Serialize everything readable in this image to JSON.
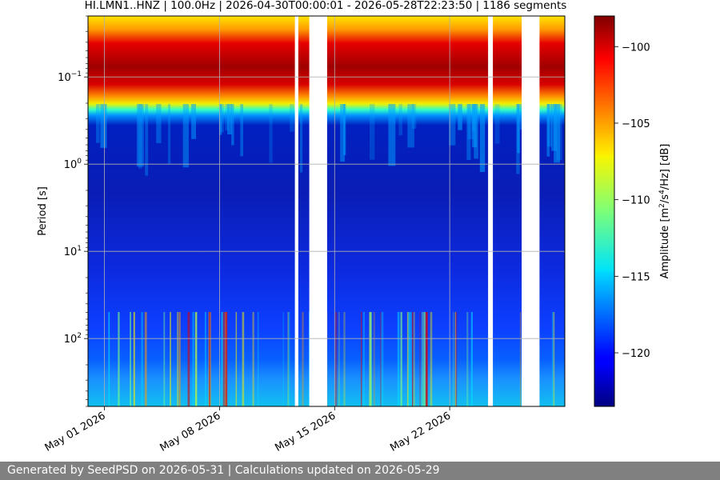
{
  "footer": {
    "text": "Generated by SeedPSD on 2026-05-31 | Calculations updated on 2026-05-29"
  },
  "chart_data": {
    "type": "heatmap",
    "title": "HI.LMN1..HNZ | 100.0Hz | 2026-04-30T00:00:01 - 2026-05-28T22:23:50 | 1186 segments",
    "xlabel": "",
    "ylabel": "Period [s]",
    "x_range": [
      "2026-04-30",
      "2026-05-29"
    ],
    "x_ticks": [
      "May 01 2026",
      "May 08 2026",
      "May 15 2026",
      "May 22 2026"
    ],
    "y_scale": "log",
    "y_range": [
      0.02,
      600
    ],
    "y_ticks": [
      {
        "value": 0.1,
        "label": "10",
        "exp": "−1"
      },
      {
        "value": 1,
        "label": "10",
        "exp": "0"
      },
      {
        "value": 10,
        "label": "10",
        "exp": "1"
      },
      {
        "value": 100,
        "label": "10",
        "exp": "2"
      }
    ],
    "grid": true,
    "gaps": [
      [
        "2026-05-12T14:00",
        "2026-05-12T19:00"
      ],
      [
        "2026-05-13T11:00",
        "2026-05-14T13:00"
      ],
      [
        "2026-05-24T08:00",
        "2026-05-24T15:00"
      ],
      [
        "2026-05-26T09:00",
        "2026-05-27T11:00"
      ]
    ],
    "colorbar": {
      "label": "Amplitude [m²/s⁴/Hz] [dB]",
      "label_parts": [
        "Amplitude [m",
        "2",
        "/s",
        "4",
        "/Hz] [dB]"
      ],
      "range": [
        -123.5,
        -98
      ],
      "ticks": [
        -100,
        -105,
        -110,
        -115,
        -120
      ],
      "colormap": "jet"
    }
  }
}
